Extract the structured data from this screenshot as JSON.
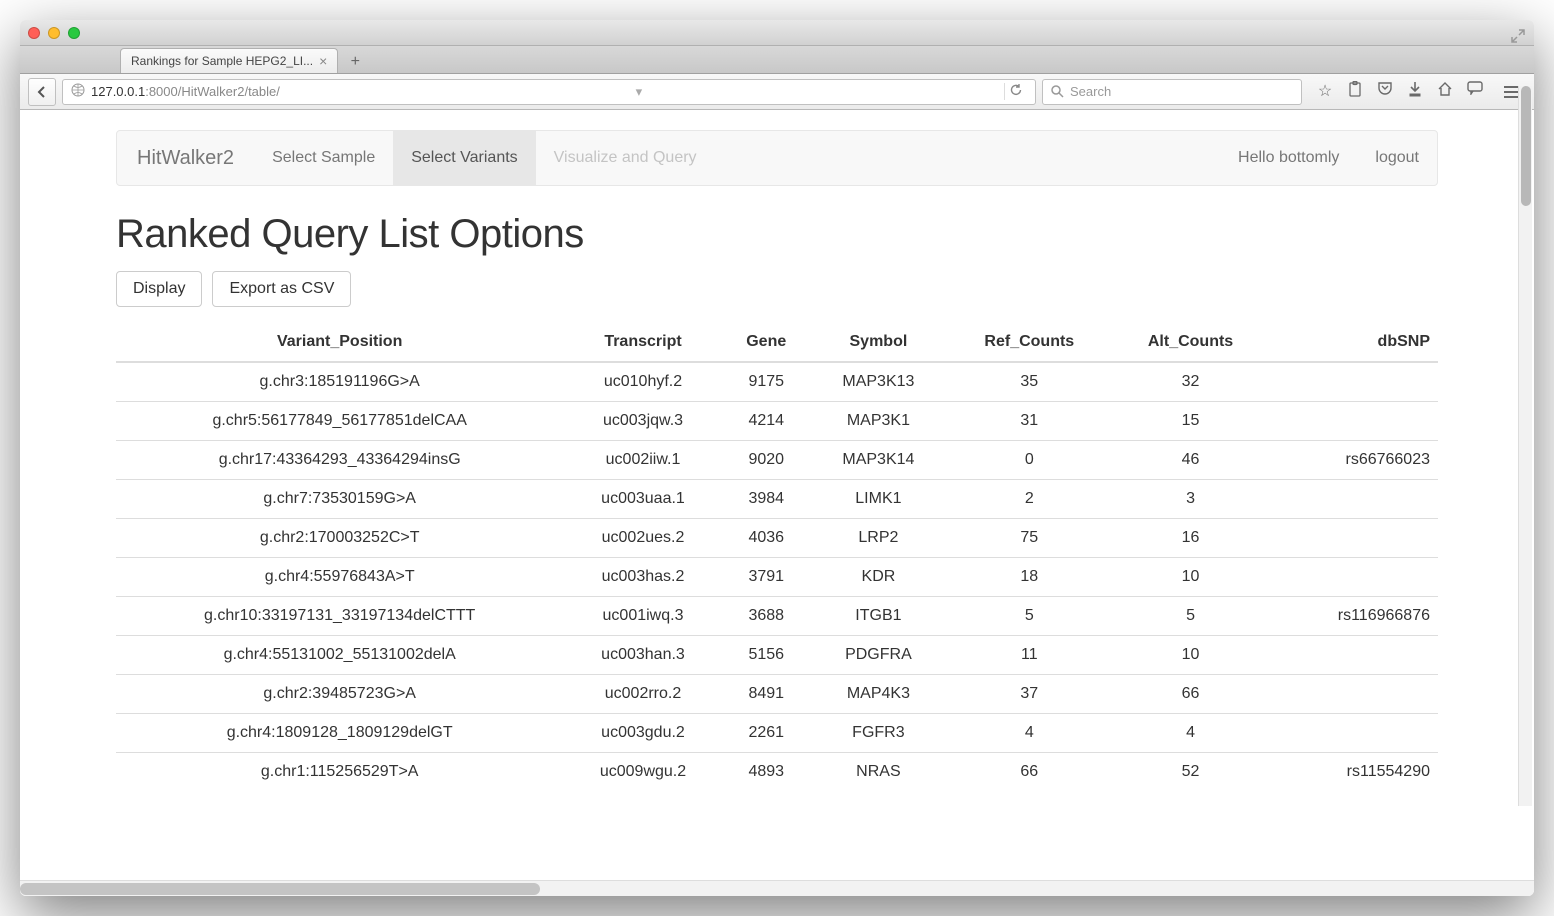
{
  "window": {
    "tab_title": "Rankings for Sample HEPG2_LI...",
    "url_host": "127.0.0.1",
    "url_port": ":8000",
    "url_path": "/HitWalker2/table/",
    "search_placeholder": "Search"
  },
  "nav": {
    "brand": "HitWalker2",
    "items": [
      {
        "label": "Select Sample",
        "state": "normal"
      },
      {
        "label": "Select Variants",
        "state": "active"
      },
      {
        "label": "Visualize and Query",
        "state": "disabled"
      }
    ],
    "right": [
      {
        "label": "Hello bottomly"
      },
      {
        "label": "logout"
      }
    ]
  },
  "page": {
    "title": "Ranked Query List Options",
    "buttons": {
      "display": "Display",
      "export": "Export as CSV"
    }
  },
  "table": {
    "columns": [
      "Variant_Position",
      "Transcript",
      "Gene",
      "Symbol",
      "Ref_Counts",
      "Alt_Counts",
      "dbSNP"
    ],
    "rows": [
      {
        "Variant_Position": "g.chr3:185191196G>A",
        "Transcript": "uc010hyf.2",
        "Gene": "9175",
        "Symbol": "MAP3K13",
        "Ref_Counts": "35",
        "Alt_Counts": "32",
        "dbSNP": ""
      },
      {
        "Variant_Position": "g.chr5:56177849_56177851delCAA",
        "Transcript": "uc003jqw.3",
        "Gene": "4214",
        "Symbol": "MAP3K1",
        "Ref_Counts": "31",
        "Alt_Counts": "15",
        "dbSNP": ""
      },
      {
        "Variant_Position": "g.chr17:43364293_43364294insG",
        "Transcript": "uc002iiw.1",
        "Gene": "9020",
        "Symbol": "MAP3K14",
        "Ref_Counts": "0",
        "Alt_Counts": "46",
        "dbSNP": "rs66766023"
      },
      {
        "Variant_Position": "g.chr7:73530159G>A",
        "Transcript": "uc003uaa.1",
        "Gene": "3984",
        "Symbol": "LIMK1",
        "Ref_Counts": "2",
        "Alt_Counts": "3",
        "dbSNP": ""
      },
      {
        "Variant_Position": "g.chr2:170003252C>T",
        "Transcript": "uc002ues.2",
        "Gene": "4036",
        "Symbol": "LRP2",
        "Ref_Counts": "75",
        "Alt_Counts": "16",
        "dbSNP": ""
      },
      {
        "Variant_Position": "g.chr4:55976843A>T",
        "Transcript": "uc003has.2",
        "Gene": "3791",
        "Symbol": "KDR",
        "Ref_Counts": "18",
        "Alt_Counts": "10",
        "dbSNP": ""
      },
      {
        "Variant_Position": "g.chr10:33197131_33197134delCTTT",
        "Transcript": "uc001iwq.3",
        "Gene": "3688",
        "Symbol": "ITGB1",
        "Ref_Counts": "5",
        "Alt_Counts": "5",
        "dbSNP": "rs116966876"
      },
      {
        "Variant_Position": "g.chr4:55131002_55131002delA",
        "Transcript": "uc003han.3",
        "Gene": "5156",
        "Symbol": "PDGFRA",
        "Ref_Counts": "11",
        "Alt_Counts": "10",
        "dbSNP": ""
      },
      {
        "Variant_Position": "g.chr2:39485723G>A",
        "Transcript": "uc002rro.2",
        "Gene": "8491",
        "Symbol": "MAP4K3",
        "Ref_Counts": "37",
        "Alt_Counts": "66",
        "dbSNP": ""
      },
      {
        "Variant_Position": "g.chr4:1809128_1809129delGT",
        "Transcript": "uc003gdu.2",
        "Gene": "2261",
        "Symbol": "FGFR3",
        "Ref_Counts": "4",
        "Alt_Counts": "4",
        "dbSNP": ""
      },
      {
        "Variant_Position": "g.chr1:115256529T>A",
        "Transcript": "uc009wgu.2",
        "Gene": "4893",
        "Symbol": "NRAS",
        "Ref_Counts": "66",
        "Alt_Counts": "52",
        "dbSNP": "rs11554290"
      }
    ]
  },
  "colors": {
    "nav_bg": "#f8f8f8",
    "nav_border": "#e7e7e7",
    "text_muted": "#777777",
    "text": "#333333",
    "row_border": "#dddddd"
  }
}
